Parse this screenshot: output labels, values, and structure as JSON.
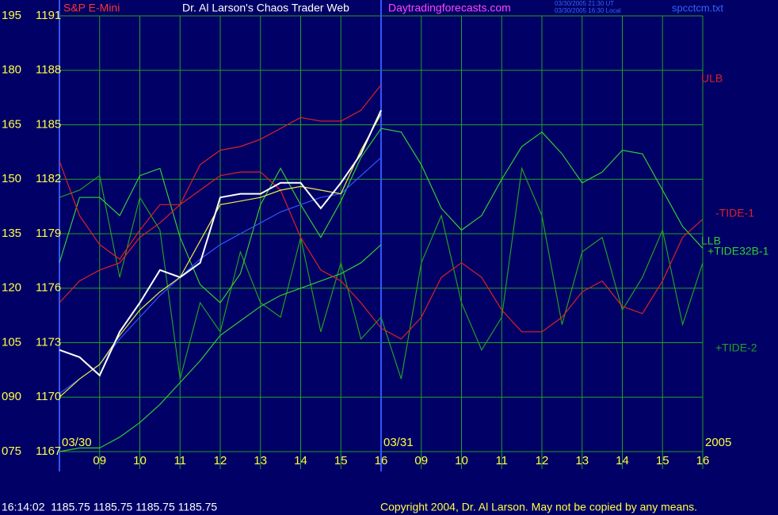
{
  "chart_data": {
    "type": "line",
    "title": "Dr. Al Larson's Chaos Trader Web",
    "instrument": "S&P E-Mini",
    "website": "Daytradingforecasts.com",
    "timestamps": [
      "03/30/2005 21:30 UT",
      "03/30/2005 16:30 Local"
    ],
    "file": "spcctcm.txt",
    "status": "16:14:02  1185.75 1185.75 1185.75 1185.75",
    "copyright": "Copyright 2004, Dr. Al Larson. May not be copied by any means.",
    "year": "2005",
    "grid": true,
    "grid_color": "#22a022",
    "background": "#000066",
    "xlim": [
      0,
      16
    ],
    "xticks": [
      {
        "value": 1,
        "label": "09"
      },
      {
        "value": 2,
        "label": "10"
      },
      {
        "value": 3,
        "label": "11"
      },
      {
        "value": 4,
        "label": "12"
      },
      {
        "value": 5,
        "label": "13"
      },
      {
        "value": 6,
        "label": "14"
      },
      {
        "value": 7,
        "label": "15"
      },
      {
        "value": 8,
        "label": "16"
      },
      {
        "value": 9,
        "label": "09"
      },
      {
        "value": 10,
        "label": "10"
      },
      {
        "value": 11,
        "label": "11"
      },
      {
        "value": 12,
        "label": "12"
      },
      {
        "value": 13,
        "label": "13"
      },
      {
        "value": 14,
        "label": "14"
      },
      {
        "value": 15,
        "label": "15"
      },
      {
        "value": 16,
        "label": "16"
      }
    ],
    "date_ticks": [
      {
        "value": 0,
        "label": "03/30"
      },
      {
        "value": 8,
        "label": "03/31"
      }
    ],
    "ylim": [
      75,
      195
    ],
    "yticks": [
      {
        "value": 75,
        "label": "075"
      },
      {
        "value": 90,
        "label": "090"
      },
      105,
      120,
      135,
      150,
      165,
      180,
      195
    ],
    "y2lim": [
      1167,
      1191
    ],
    "y2ticks": [
      1167,
      1170,
      1173,
      1176,
      1179,
      1182,
      1185,
      1188,
      1191
    ],
    "x": [
      0,
      0.5,
      1,
      1.5,
      2,
      2.5,
      3,
      3.5,
      4,
      4.5,
      5,
      5.5,
      6,
      6.5,
      7,
      7.5,
      8,
      8.5,
      9,
      9.5,
      10,
      10.5,
      11,
      11.5,
      12,
      12.5,
      13,
      13.5,
      14,
      14.5,
      15,
      15.5,
      16
    ],
    "series": [
      {
        "name": "+TIDE-2",
        "color": "#22a022",
        "values": [
          145,
          147,
          151,
          123,
          145,
          136,
          95,
          116,
          108,
          130,
          116,
          112,
          134,
          108,
          127,
          106,
          112,
          95,
          127,
          140,
          116,
          103,
          112,
          153,
          140,
          110,
          130,
          134,
          114,
          123,
          136,
          110,
          127
        ]
      },
      {
        "name": "+TIDE32B-1",
        "color": "#33cc33",
        "values": [
          127,
          145,
          145,
          140,
          151,
          153,
          134,
          121,
          116,
          124,
          143,
          153,
          143,
          134,
          144,
          156,
          164,
          163,
          154,
          142,
          136,
          140,
          150,
          159,
          163,
          157,
          149,
          152,
          158,
          157,
          147,
          137,
          131
        ]
      },
      {
        "name": "LLB",
        "color": "#33cc33",
        "values": [
          75,
          76,
          76,
          79,
          83,
          88,
          94,
          100,
          107,
          111,
          115,
          118,
          120,
          122,
          124,
          127,
          132,
          null,
          null,
          null,
          null,
          null,
          null,
          null,
          null,
          null,
          null,
          null,
          null,
          null,
          null,
          null,
          null
        ]
      },
      {
        "name": "-TIDE-1",
        "color": "#dd2222",
        "values": [
          116,
          122,
          125,
          127,
          134,
          138,
          143,
          147,
          151,
          152,
          152,
          147,
          134,
          125,
          122,
          116,
          109,
          106,
          112,
          123,
          127,
          123,
          114,
          108,
          108,
          112,
          119,
          122,
          115,
          113,
          122,
          134,
          139
        ]
      },
      {
        "name": "ULB",
        "color": "#dd2222",
        "values": [
          155,
          140,
          132,
          128,
          136,
          143,
          143,
          154,
          158,
          159,
          161,
          164,
          167,
          166,
          166,
          169,
          176,
          null,
          null,
          null,
          null,
          null,
          null,
          null,
          null,
          null,
          null,
          null,
          null,
          null,
          null,
          null,
          null
        ]
      },
      {
        "color": "#3355ff",
        "values": [
          91,
          95,
          99,
          106,
          112,
          118,
          123,
          128,
          132,
          135,
          138,
          141,
          143,
          145,
          146,
          151,
          156,
          null,
          null,
          null,
          null,
          null,
          null,
          null,
          null,
          null,
          null,
          null,
          null,
          null,
          null,
          null,
          null
        ]
      },
      {
        "color": "#eeee44",
        "values": [
          90,
          95,
          99,
          107,
          114,
          119,
          123,
          133,
          143,
          144,
          145,
          147,
          148,
          147,
          146,
          158,
          168,
          null,
          null,
          null,
          null,
          null,
          null,
          null,
          null,
          null,
          null,
          null,
          null,
          null,
          null,
          null,
          null
        ]
      },
      {
        "color": "#ffffff",
        "values": [
          103,
          101,
          96,
          108,
          116,
          125,
          123,
          127,
          145,
          146,
          146,
          149,
          149,
          142,
          149,
          157,
          169,
          null,
          null,
          null,
          null,
          null,
          null,
          null,
          null,
          null,
          null,
          null,
          null,
          null,
          null,
          null,
          null
        ]
      }
    ]
  }
}
